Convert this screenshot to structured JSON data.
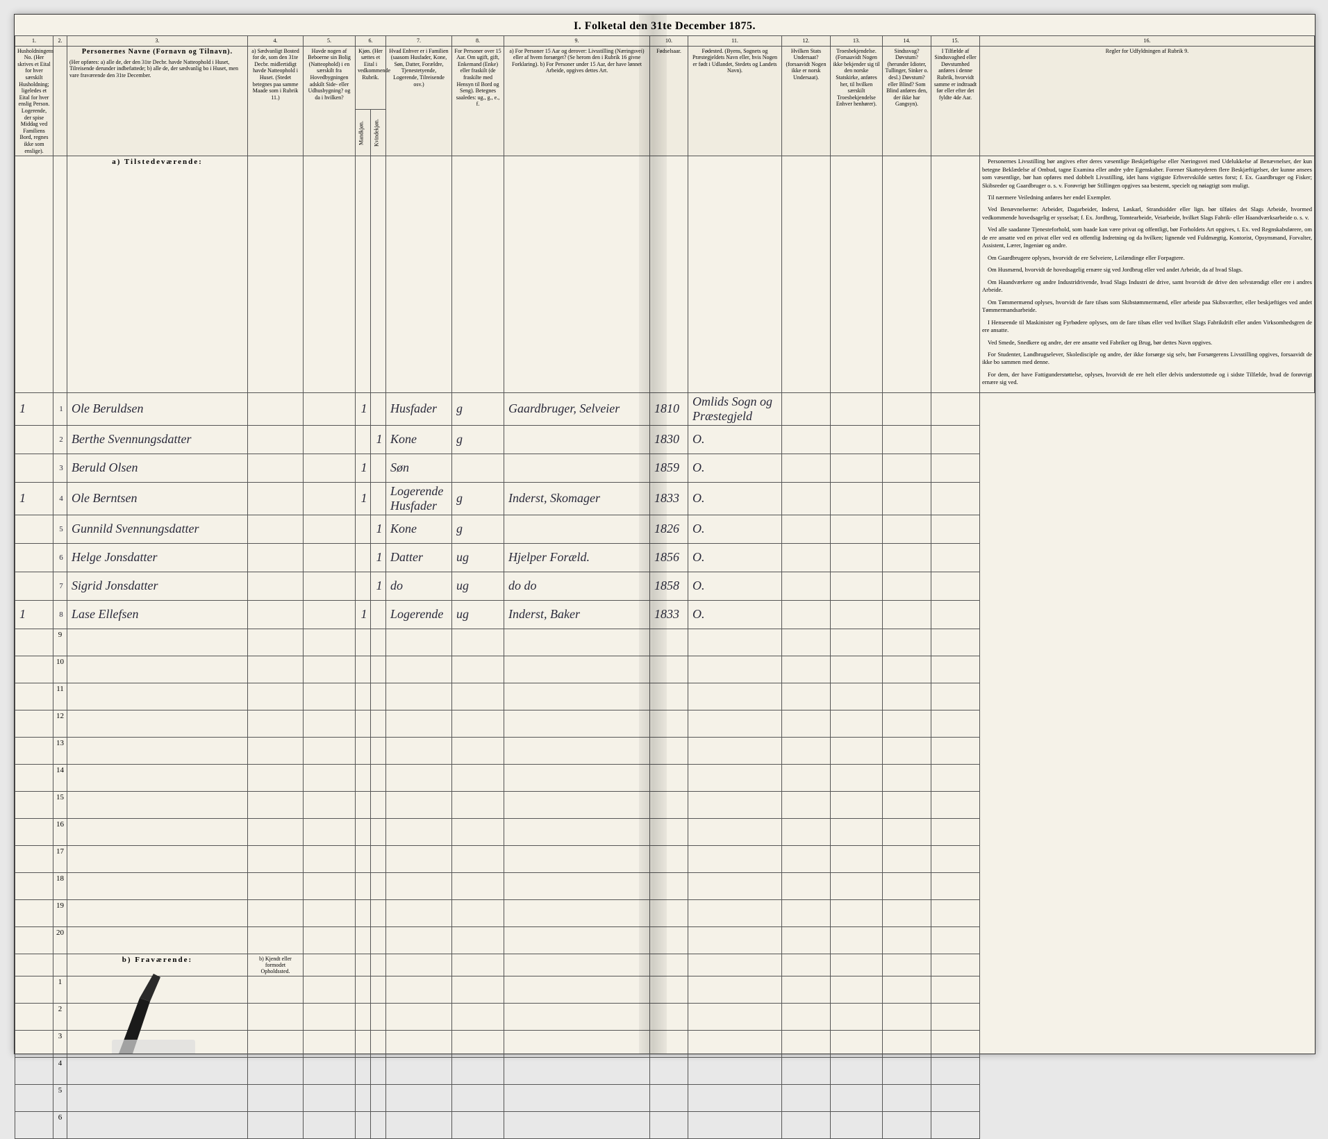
{
  "title": "I. Folketal den 31te December 1875.",
  "colors": {
    "paper": "#f5f2e8",
    "ink": "#2a2a3a",
    "border": "#555555",
    "header_bg": "#f0ece0"
  },
  "column_numbers": [
    "1.",
    "2.",
    "3.",
    "4.",
    "5.",
    "6.",
    "7.",
    "8.",
    "9.",
    "10.",
    "11.",
    "12.",
    "13.",
    "14.",
    "15.",
    "16."
  ],
  "column_headers": {
    "c1": "Husholdningens No.\n(Her skrives et Eital for hver særskilt Husholdning; ligeledes et Eital for hver enslig Person.\nLogerende, der spise Middag ved Familiens Bord, regnes ikke som enslige).",
    "c3_title": "Personernes Navne (Fornavn og Tilnavn).",
    "c3_sub": "(Her opføres:\na) alle de, der den 31te Decbr. havde Natteophold i Huset, Tilreisende derunder indbefattede;\nb) alle de, der sædvanlig bo i Huset, men vare fraværende den 31te December.",
    "c4": "a) Sædvanligt Bosted for de, som den 31te Decbr. midlertidigt havde Natteophold i Huset.\n(Stedet betegnes paa samme Maade som i Rubrik 11.)",
    "c5": "Havde nogen af Beboerne sin Bolig (Natteophold) i en særskilt fra Hovedbygningen adskilt Side- eller Udhusbygning? og da i hvilken?",
    "c6": "Kjøn. (Her sættes et Eital i vedkommende Rubrik.",
    "c6a": "Mandkjøn.",
    "c6b": "Kvindekjøn.",
    "c7": "Hvad Enhver er i Familien\n(saasom Husfader, Kone, Søn, Datter, Forældre, Tjenestetyende, Logerende, Tilreisende osv.)",
    "c8": "For Personer over 15 Aar. Om ugift, gift, Enkemand (Enke) eller fraskilt (de fraskilte med Hensyn til Bord og Seng).\nBetegnes saaledes: ug., g., e., f.",
    "c9": "a) For Personer 15 Aar og derover: Livsstilling (Næringsvei) eller af hvem forsørget? (Se herom den i Rubrik 16 givne Forklaring).\nb) For Personer under 15 Aar, der have lønnet Arbeide, opgives dettes Art.",
    "c10": "Fødselsaar.",
    "c11": "Fødested.\n(Byens, Sognets og Præstegjeldets Navn eller, hvis Nogen er født i Udlandet, Stedets og Landets Navn).",
    "c12": "Hvilken Stats Undersaat?\n(forsaavidt Nogen ikke er norsk Undersaat).",
    "c13": "Troesbekjendelse.\n(Forsaavidt Nogen ikke bekjender sig til den norske Statskirke, anføres her, til hvilken særskilt Troesbekjendelse Enhver henhører).",
    "c14": "Sindssvag? Døvstum?\n(herunder Idioter, Tullinger, Sinker o. desl.) Døvstum? eller Blind? Som Blind anføres den, der ikke har Gangsyn).",
    "c15": "I Tilfælde af Sindssvaghed eller Døvstumhed anføres i denne Rubrik, hvorvidt samme er indtraadt før eller efter det fyldte 4de Aar.",
    "c16": "Regler for Udfyldningen af Rubrik 9."
  },
  "section_a": "a) Tilstedeværende:",
  "section_b": "b) Fraværende:",
  "section_b_col4": "b) Kjendt eller formodet Opholdssted.",
  "rows": [
    {
      "n": "1",
      "hh": "1",
      "name": "Ole Beruldsen",
      "c5": "",
      "m": "1",
      "k": "",
      "fam": "Husfader",
      "civ": "g",
      "occ": "Gaardbruger, Selveier",
      "year": "1810",
      "place": "Omlids Sogn og Præstegjeld"
    },
    {
      "n": "2",
      "hh": "",
      "name": "Berthe Svennungsdatter",
      "c5": "",
      "m": "",
      "k": "1",
      "fam": "Kone",
      "civ": "g",
      "occ": "",
      "year": "1830",
      "place": "O."
    },
    {
      "n": "3",
      "hh": "",
      "name": "Beruld Olsen",
      "c5": "",
      "m": "1",
      "k": "",
      "fam": "Søn",
      "civ": "",
      "occ": "",
      "year": "1859",
      "place": "O."
    },
    {
      "n": "4",
      "hh": "1",
      "name": "Ole Berntsen",
      "c5": "",
      "m": "1",
      "k": "",
      "fam": "Logerende Husfader",
      "civ": "g",
      "occ": "Inderst, Skomager",
      "year": "1833",
      "place": "O."
    },
    {
      "n": "5",
      "hh": "",
      "name": "Gunnild Svennungsdatter",
      "c5": "",
      "m": "",
      "k": "1",
      "fam": "Kone",
      "civ": "g",
      "occ": "",
      "year": "1826",
      "place": "O."
    },
    {
      "n": "6",
      "hh": "",
      "name": "Helge Jonsdatter",
      "c5": "",
      "m": "",
      "k": "1",
      "fam": "Datter",
      "civ": "ug",
      "occ": "Hjelper Foræld.",
      "year": "1856",
      "place": "O."
    },
    {
      "n": "7",
      "hh": "",
      "name": "Sigrid Jonsdatter",
      "c5": "",
      "m": "",
      "k": "1",
      "fam": "do",
      "civ": "ug",
      "occ": "do   do",
      "year": "1858",
      "place": "O."
    },
    {
      "n": "8",
      "hh": "1",
      "name": "Lase Ellefsen",
      "c5": "",
      "m": "1",
      "k": "",
      "fam": "Logerende",
      "civ": "ug",
      "occ": "Inderst, Baker",
      "year": "1833",
      "place": "O."
    }
  ],
  "empty_rows_a": [
    "9",
    "10",
    "11",
    "12",
    "13",
    "14",
    "15",
    "16",
    "17",
    "18",
    "19",
    "20"
  ],
  "empty_rows_b": [
    "1",
    "2",
    "3",
    "4",
    "5",
    "6"
  ],
  "instructions_title": "Personernes Livsstilling",
  "instructions": [
    "Personernes Livsstilling bør angives efter deres væsentlige Beskjæftigelse eller Næringsvei med Udelukkelse af Benævnelser, der kun betegne Beklædelse af Ombud, tagne Examina eller andre ydre Egenskaber. Forener Skatteyderen flere Beskjæftigelser, der kunne ansees som væsentlige, bør han opføres med dobbelt Livsstilling, idet hans vigtigste Erhvervskilde sættes forst; f. Ex. Gaardbruger og Fisker; Skibsreder og Gaardbruger o. s. v. Forøvrigt bør Stillingen opgives saa bestemt, specielt og nøiagtigt som muligt.",
    "Til nærmere Veiledning anføres her endel Exempler.",
    "Ved Benævnelserne: Arbeider, Dagarbeider, Inderst, Løskarl, Strandsidder eller lign. bør tilføies det Slags Arbeide, hvormed vedkommende hovedsagelig er sysselsat; f. Ex. Jordbrug, Tomtearbeide, Veiarbeide, hvilket Slags Fabrik- eller Haandværksarbeide o. s. v.",
    "Ved alle saadanne Tjenesteforhold, som baade kan være privat og offentligt, bør Forholdets Art opgives, t. Ex. ved Regnskabsførere, om de ere ansatte ved en privat eller ved en offentlig Indretning og da hvilken; lignende ved Fuldmægtig, Kontorist, Opsynsmand, Forvalter, Assistent, Lærer, Ingeniør og andre.",
    "Om Gaardbrugere oplyses, hvorvidt de ere Selveiere, Leilændinge eller Forpagtere.",
    "Om Husmænd, hvorvidt de hovedsagelig ernære sig ved Jordbrug eller ved andet Arbeide, da af hvad Slags.",
    "Om Haandværkere og andre Industridrivende, hvad Slags Industri de drive, samt hvorvidt de drive den selvstændigt eller ere i andres Arbeide.",
    "Om Tømmermænd oplyses, hvorvidt de fare tilsøs som Skibstømmermænd, eller arbeide paa Skibsværfter, eller beskjæftiges ved andet Tømmermandsarbeide.",
    "I Henseende til Maskinister og Fyrbødere oplyses, om de fare tilsøs eller ved hvilket Slags Fabrikdrift eller anden Virksomhedsgren de ere ansatte.",
    "Ved Smede, Snedkere og andre, der ere ansatte ved Fabriker og Brug, bør dettes Navn opgives.",
    "For Studenter, Landbrugselever, Skoledisciple og andre, der ikke forsørge sig selv, bør Forsørgerens Livsstilling opgives, forsaavidt de ikke bo sammen med denne.",
    "For dem, der have Fattigunderstøttelse, oplyses, hvorvidt de ere helt eller delvis understottede og i sidste Tilfælde, hvad de forøvrigt ernære sig ved."
  ]
}
